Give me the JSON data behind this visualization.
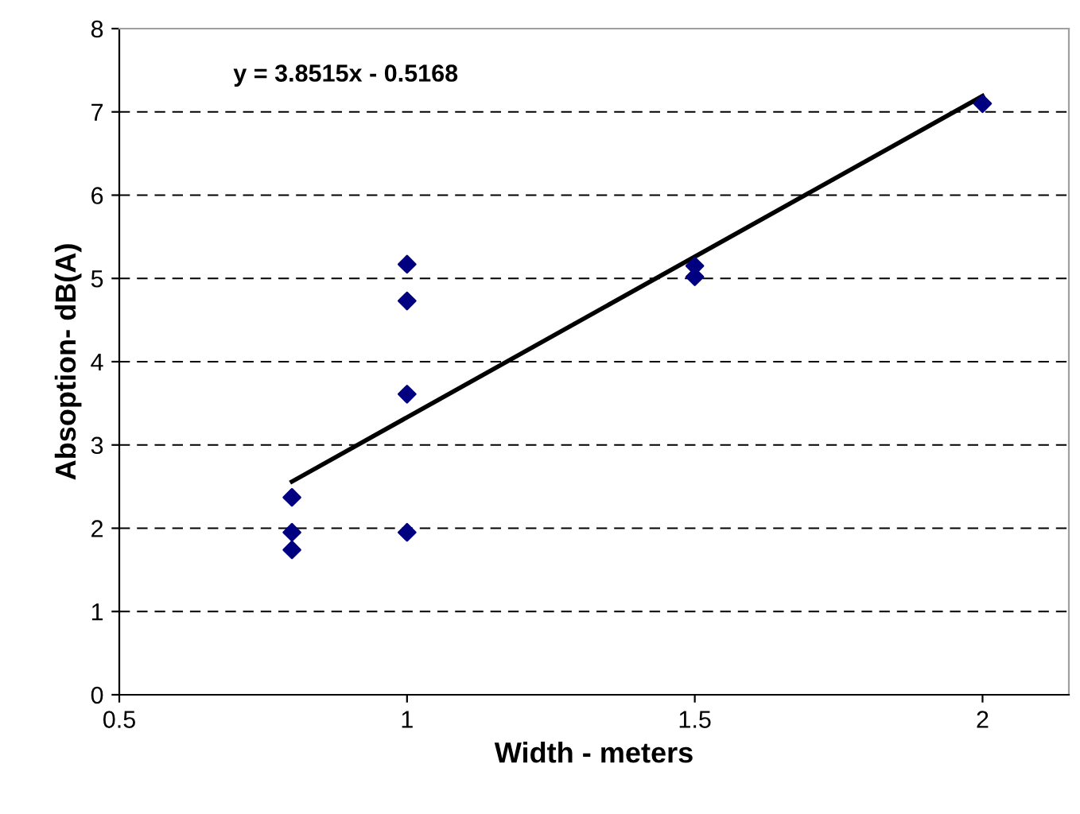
{
  "chart_data": {
    "type": "scatter",
    "xlabel": "Width - meters",
    "ylabel": "Absoption- dB(A)",
    "xlim": [
      0.5,
      2.15
    ],
    "xticks": [
      0.5,
      1,
      1.5,
      2
    ],
    "ylim": [
      0,
      8
    ],
    "yticks": [
      0,
      1,
      2,
      3,
      4,
      5,
      6,
      7,
      8
    ],
    "grid": "y",
    "annotations": [
      "y = 3.8515x - 0.5168"
    ],
    "series": [
      {
        "marker": "diamond",
        "color": "#000080",
        "x": [
          0.8,
          0.8,
          0.8,
          1,
          1,
          1,
          1,
          1.5,
          1.5,
          2
        ],
        "values": [
          2.37,
          1.95,
          1.74,
          5.17,
          4.73,
          3.61,
          1.95,
          5.15,
          5.02,
          7.1
        ]
      },
      {
        "type": "line",
        "marker": "none",
        "color": "#000000",
        "x": [
          0.8,
          2
        ],
        "values": [
          2.56,
          7.19
        ]
      }
    ]
  }
}
